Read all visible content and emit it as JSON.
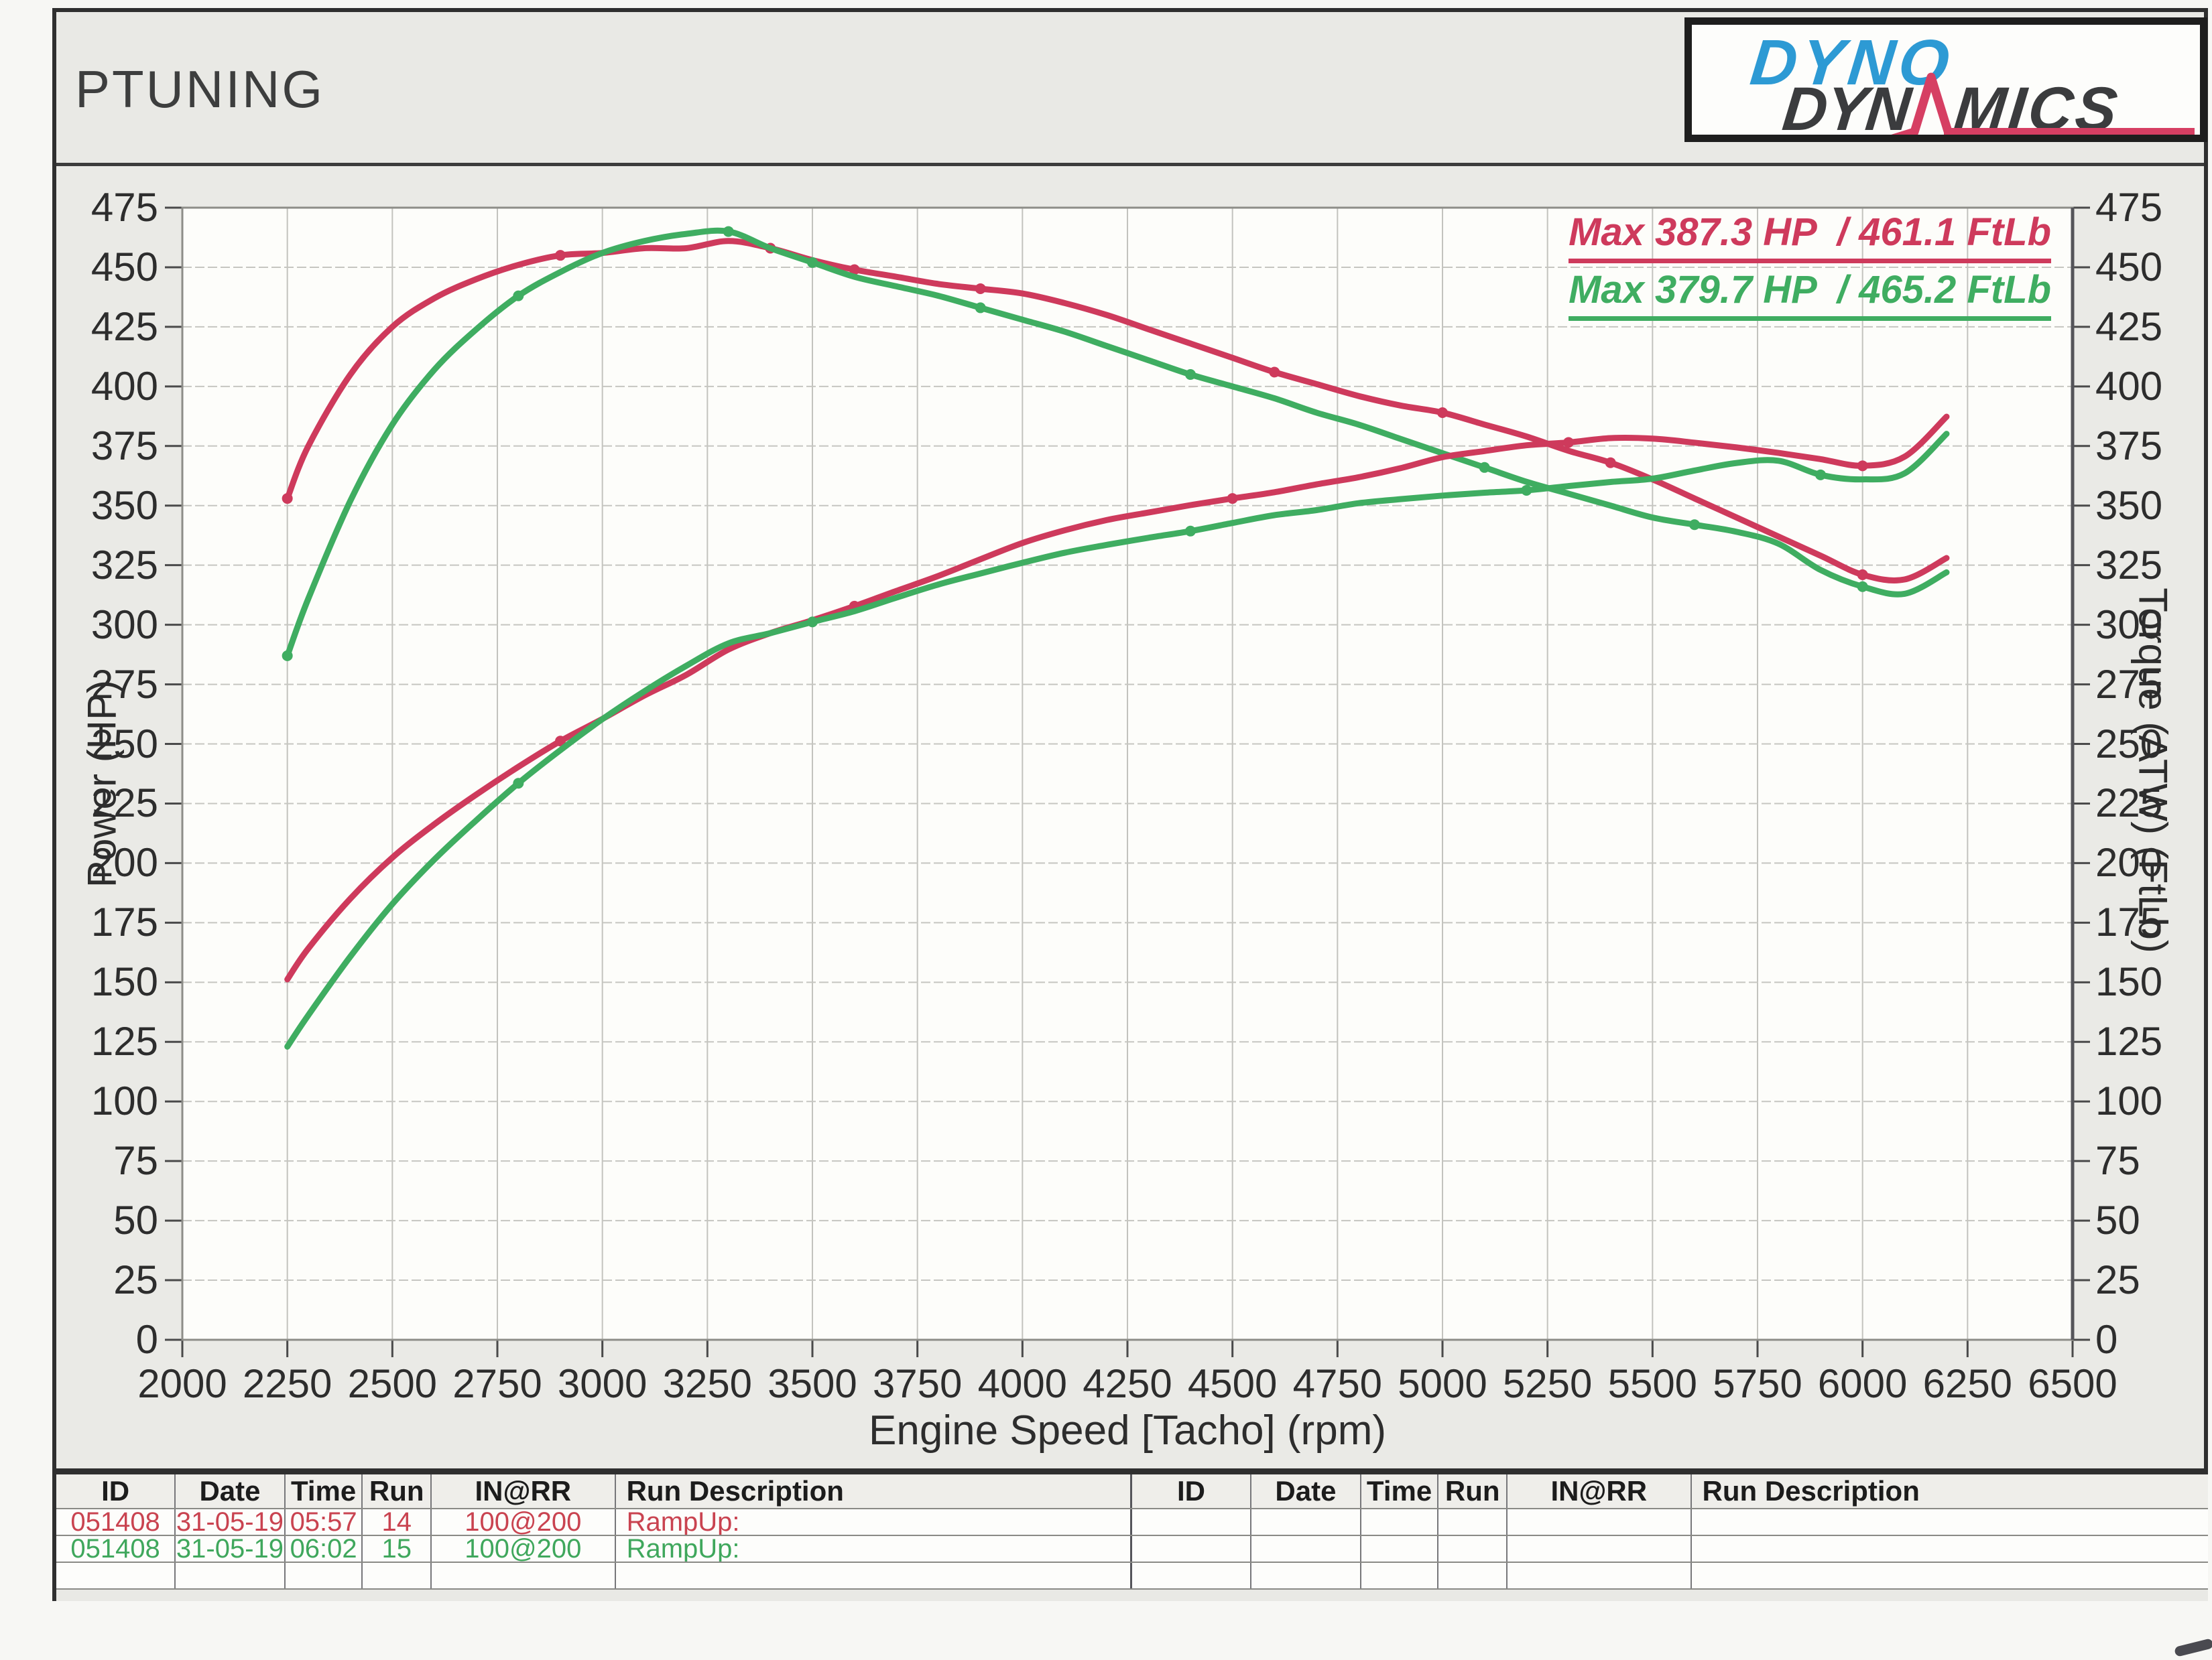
{
  "page": {
    "title": "PTUNING"
  },
  "logo": {
    "line1": "DYNO",
    "line2_left": "DYN",
    "line2_right": "MICS",
    "colors": {
      "blue": "#2d9ad4",
      "dark": "#3b3c3e",
      "red": "#d63f63"
    }
  },
  "legend": [
    {
      "label": "Max 387.3 HP  / 461.1 FtLb",
      "color": "#ce3a5c"
    },
    {
      "label": "Max 379.7 HP  / 465.2 FtLb",
      "color": "#3fad61"
    }
  ],
  "chart_data": {
    "type": "line",
    "title": "",
    "xlabel": "Engine Speed [Tacho] (rpm)",
    "ylabel_left": "Power (HP)",
    "ylabel_right": "Torque (ATW) (FtLb)",
    "xlim": [
      2000,
      6500
    ],
    "ylim": [
      0,
      475
    ],
    "x_ticks": [
      2000,
      2250,
      2500,
      2750,
      3000,
      3250,
      3500,
      3750,
      4000,
      4250,
      4500,
      4750,
      5000,
      5250,
      5500,
      5750,
      6000,
      6250,
      6500
    ],
    "y_ticks": [
      475,
      450,
      425,
      400,
      375,
      350,
      325,
      300,
      275,
      250,
      225,
      200,
      175,
      150,
      125,
      100,
      75,
      50,
      25,
      0
    ],
    "grid": true,
    "legend_position": "top-right",
    "rpm": [
      2250,
      2300,
      2400,
      2500,
      2600,
      2700,
      2800,
      2900,
      3000,
      3100,
      3200,
      3300,
      3400,
      3500,
      3600,
      3700,
      3800,
      3900,
      4000,
      4100,
      4200,
      4300,
      4400,
      4500,
      4600,
      4700,
      4800,
      4900,
      5000,
      5100,
      5200,
      5300,
      5400,
      5500,
      5600,
      5700,
      5800,
      5900,
      6000,
      6100,
      6200
    ],
    "series": [
      {
        "name": "Run 14 Torque (FtLb)",
        "color": "#ce3a5c",
        "max_label": 461.1,
        "values": [
          353,
          375,
          405,
          425,
          437,
          445,
          451,
          455,
          456,
          458,
          458,
          461,
          458,
          453,
          449,
          446,
          443,
          441,
          439,
          435,
          430,
          424,
          418,
          412,
          406,
          401,
          396,
          392,
          389,
          384,
          379,
          373,
          368,
          361,
          353,
          345,
          337,
          329,
          321,
          319,
          328
        ],
        "marker_rpm": [
          2250,
          2900,
          3400,
          3600,
          3900,
          4600,
          5000,
          5400,
          6000
        ]
      },
      {
        "name": "Run 15 Torque (FtLb)",
        "color": "#3fad61",
        "max_label": 465.2,
        "values": [
          287,
          311,
          352,
          384,
          407,
          424,
          438,
          448,
          456,
          461,
          464,
          465,
          458,
          452,
          446,
          442,
          438,
          433,
          428,
          423,
          417,
          411,
          405,
          400,
          395,
          389,
          384,
          378,
          372,
          366,
          360,
          355,
          350,
          345,
          342,
          339,
          334,
          323,
          316,
          313,
          322
        ],
        "marker_rpm": [
          2250,
          2800,
          3300,
          3500,
          3900,
          4400,
          5100,
          5600,
          6000
        ]
      },
      {
        "name": "Run 14 Power (HP)",
        "color": "#ce3a5c",
        "max_label": 387.3,
        "values": [
          151.2,
          164.2,
          185.1,
          202.3,
          216.3,
          228.8,
          240.4,
          251.2,
          260.5,
          270.3,
          279.0,
          289.6,
          296.5,
          301.9,
          307.8,
          314.2,
          320.5,
          327.5,
          334.3,
          339.6,
          343.9,
          347.1,
          350.2,
          353.0,
          355.6,
          358.9,
          361.9,
          365.7,
          370.3,
          372.9,
          375.3,
          376.5,
          378.3,
          378.1,
          376.4,
          374.4,
          372.1,
          369.5,
          366.7,
          370.5,
          387.3
        ],
        "marker_rpm": [
          2900,
          3600,
          4500,
          5300,
          6000
        ]
      },
      {
        "name": "Run 15 Power (HP)",
        "color": "#3fad61",
        "max_label": 379.7,
        "values": [
          123.0,
          136.2,
          160.8,
          182.8,
          201.5,
          218.0,
          233.5,
          247.4,
          260.4,
          272.1,
          282.8,
          292.2,
          296.5,
          301.2,
          305.7,
          311.4,
          316.9,
          321.5,
          326.0,
          330.2,
          333.5,
          336.5,
          339.3,
          342.7,
          346.0,
          348.1,
          351.0,
          352.7,
          354.2,
          355.4,
          356.4,
          358.2,
          359.9,
          361.3,
          364.7,
          367.9,
          368.8,
          362.9,
          361.0,
          363.5,
          380.1
        ],
        "marker_rpm": [
          2800,
          3500,
          4400,
          5200,
          5900
        ]
      }
    ]
  },
  "table": {
    "headers": [
      "ID",
      "Date",
      "Time",
      "Run",
      "IN@RR",
      "Run Description"
    ],
    "left_rows": [
      {
        "cells": [
          "051408",
          "31-05-19",
          "05:57",
          "14",
          "100@200",
          "RampUp:"
        ],
        "color": "#c94350"
      },
      {
        "cells": [
          "051408",
          "31-05-19",
          "06:02",
          "15",
          "100@200",
          "RampUp:"
        ],
        "color": "#3fa75c"
      },
      {
        "cells": [
          "",
          "",
          "",
          "",
          "",
          ""
        ],
        "color": "#333333"
      }
    ],
    "right_rows": [
      {
        "cells": [
          "",
          "",
          "",
          "",
          "",
          ""
        ],
        "color": "#333333"
      },
      {
        "cells": [
          "",
          "",
          "",
          "",
          "",
          ""
        ],
        "color": "#333333"
      },
      {
        "cells": [
          "",
          "",
          "",
          "",
          "",
          ""
        ],
        "color": "#333333"
      }
    ]
  }
}
